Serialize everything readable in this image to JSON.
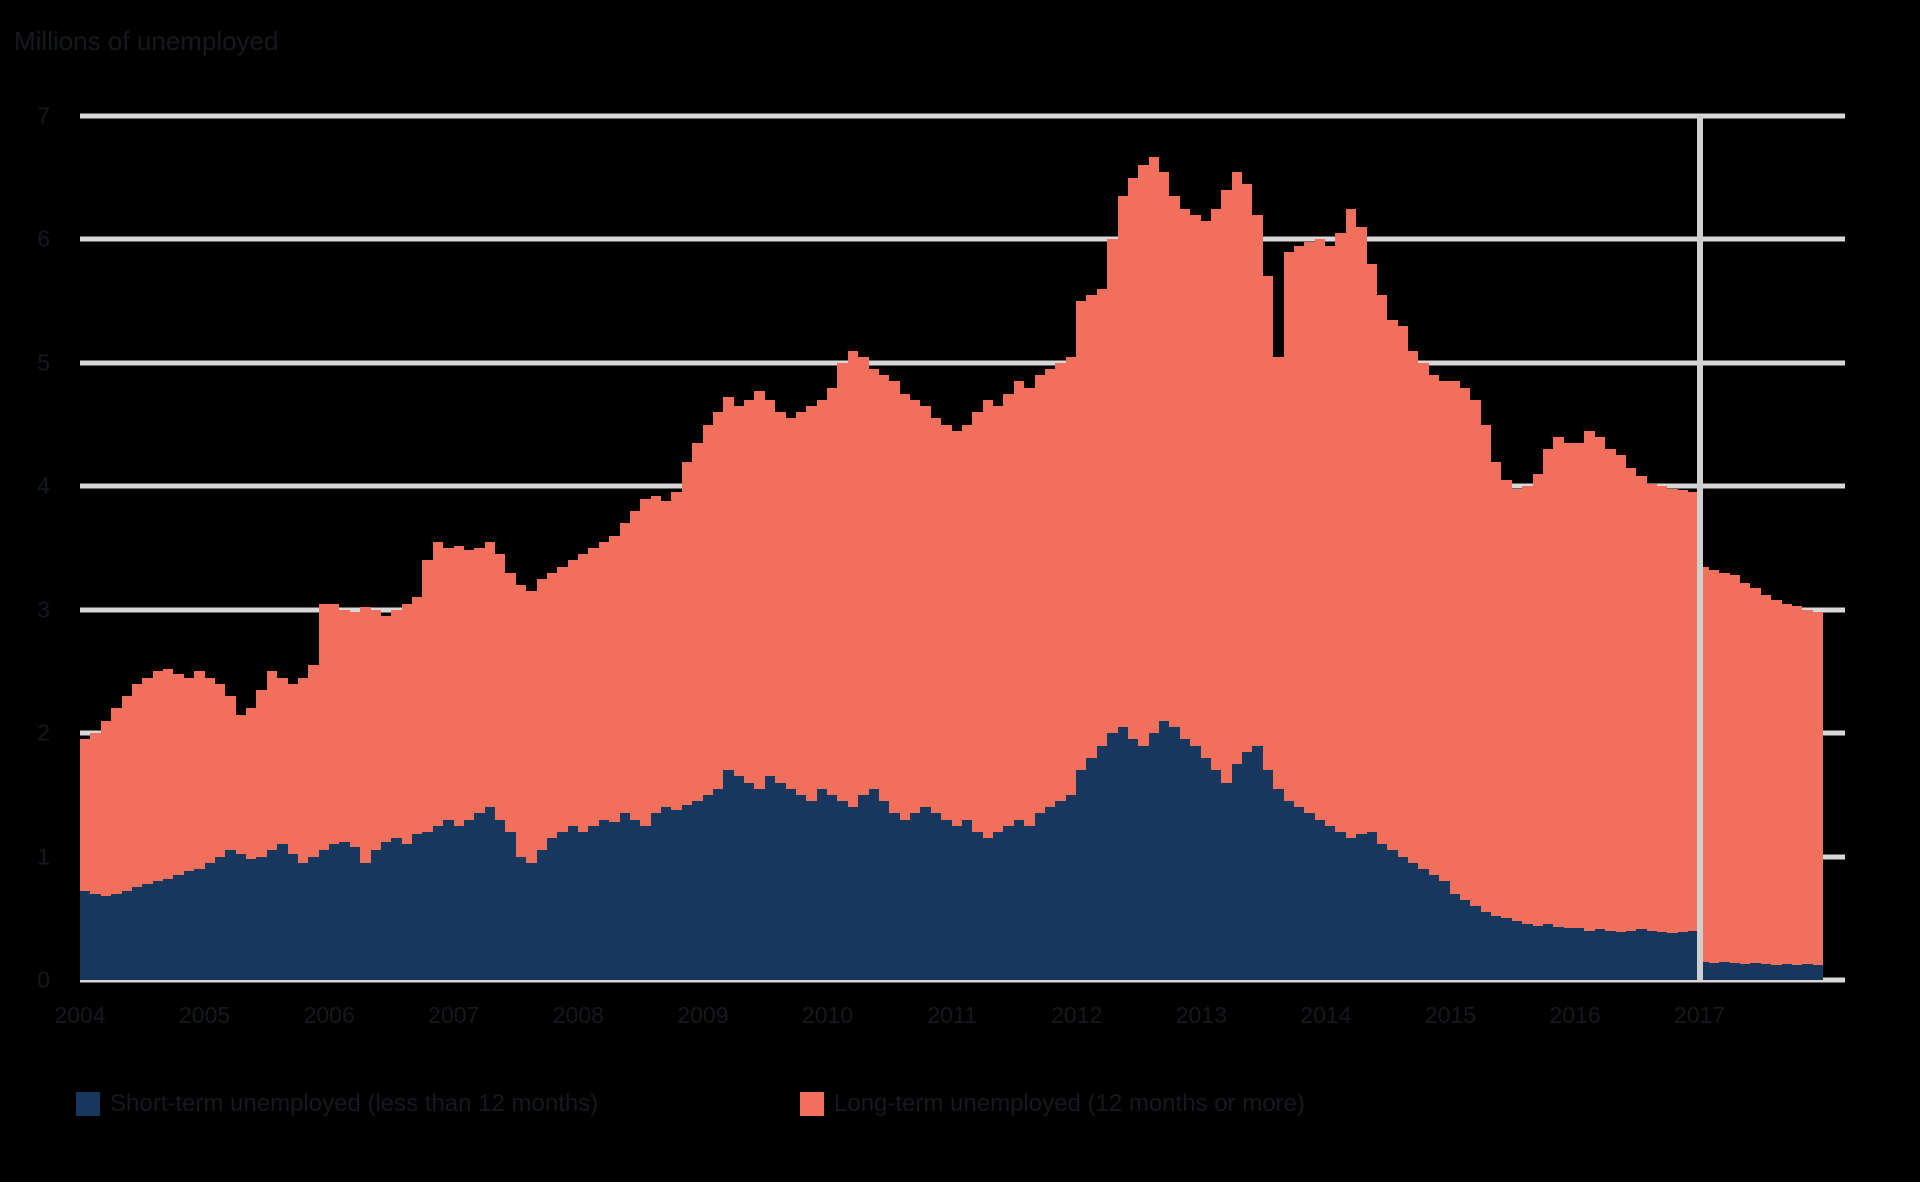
{
  "title": "Millions of unemployed",
  "colors": {
    "short_term": "#17375e",
    "long_term": "#f0705c",
    "gridline": "#d8d8d8",
    "divider": "#cfcfcf",
    "background": "#000000",
    "text": "#15181c"
  },
  "legend": [
    {
      "label": "Short-term unemployed (less than 12 months)",
      "color": "#17375e"
    },
    {
      "label": "Long-term unemployed (12 months or more)",
      "color": "#f0705c"
    }
  ],
  "chart_data": {
    "type": "bar",
    "stacked": true,
    "title": "Millions of unemployed",
    "xlabel": "",
    "ylabel": "",
    "ylim": [
      0,
      7
    ],
    "yticks": [
      0,
      1,
      2,
      3,
      4,
      5,
      6,
      7
    ],
    "grid": true,
    "legend_position": "bottom",
    "x_years": [
      "2004",
      "2005",
      "2006",
      "2007",
      "2008",
      "2009",
      "2010",
      "2011",
      "2012",
      "2013",
      "2014",
      "2015",
      "2016",
      "2017"
    ],
    "frequency": "monthly",
    "total_slots": 170,
    "divider_slot": 156,
    "series": [
      {
        "name": "Short-term unemployed (less than 12 months)",
        "color": "#17375e",
        "values": [
          0.72,
          0.7,
          0.68,
          0.7,
          0.72,
          0.75,
          0.78,
          0.8,
          0.82,
          0.85,
          0.88,
          0.9,
          0.95,
          1.0,
          1.05,
          1.02,
          0.98,
          1.0,
          1.05,
          1.1,
          1.02,
          0.95,
          1.0,
          1.05,
          1.1,
          1.12,
          1.08,
          0.95,
          1.05,
          1.12,
          1.15,
          1.1,
          1.18,
          1.2,
          1.25,
          1.3,
          1.25,
          1.3,
          1.35,
          1.4,
          1.3,
          1.2,
          1.0,
          0.95,
          1.05,
          1.15,
          1.2,
          1.25,
          1.2,
          1.25,
          1.3,
          1.28,
          1.35,
          1.3,
          1.25,
          1.35,
          1.4,
          1.38,
          1.42,
          1.45,
          1.5,
          1.55,
          1.7,
          1.65,
          1.6,
          1.55,
          1.65,
          1.6,
          1.55,
          1.5,
          1.45,
          1.55,
          1.5,
          1.45,
          1.4,
          1.5,
          1.55,
          1.45,
          1.35,
          1.3,
          1.35,
          1.4,
          1.35,
          1.3,
          1.25,
          1.3,
          1.2,
          1.15,
          1.2,
          1.25,
          1.3,
          1.25,
          1.35,
          1.4,
          1.45,
          1.5,
          1.7,
          1.8,
          1.9,
          2.0,
          2.05,
          1.95,
          1.9,
          2.0,
          2.1,
          2.05,
          1.95,
          1.9,
          1.8,
          1.7,
          1.6,
          1.75,
          1.85,
          1.9,
          1.7,
          1.55,
          1.45,
          1.4,
          1.35,
          1.3,
          1.25,
          1.2,
          1.15,
          1.18,
          1.2,
          1.1,
          1.05,
          1.0,
          0.95,
          0.9,
          0.85,
          0.8,
          0.7,
          0.65,
          0.6,
          0.55,
          0.52,
          0.5,
          0.48,
          0.45,
          0.44,
          0.45,
          0.43,
          0.42,
          0.42,
          0.4,
          0.41,
          0.4,
          0.39,
          0.4,
          0.41,
          0.4,
          0.39,
          0.38,
          0.39,
          0.4,
          0.15,
          0.14,
          0.15,
          0.14,
          0.13,
          0.14,
          0.13,
          0.12,
          0.13,
          0.12,
          0.13,
          0.12
        ]
      },
      {
        "name": "Long-term unemployed (12 months or more)",
        "color": "#f0705c",
        "values": [
          1.23,
          1.3,
          1.42,
          1.5,
          1.58,
          1.65,
          1.67,
          1.7,
          1.7,
          1.63,
          1.57,
          1.6,
          1.5,
          1.4,
          1.25,
          1.13,
          1.22,
          1.35,
          1.45,
          1.35,
          1.38,
          1.5,
          1.55,
          2.0,
          1.95,
          1.88,
          1.9,
          2.07,
          1.95,
          1.83,
          1.85,
          1.95,
          1.92,
          2.2,
          2.3,
          2.2,
          2.27,
          2.18,
          2.15,
          2.15,
          2.15,
          2.1,
          2.2,
          2.2,
          2.2,
          2.15,
          2.15,
          2.15,
          2.25,
          2.25,
          2.25,
          2.32,
          2.35,
          2.5,
          2.65,
          2.57,
          2.48,
          2.57,
          2.78,
          2.9,
          3.0,
          3.05,
          3.02,
          3.0,
          3.1,
          3.22,
          3.05,
          3.0,
          3.0,
          3.1,
          3.2,
          3.15,
          3.3,
          3.55,
          3.7,
          3.55,
          3.4,
          3.45,
          3.5,
          3.45,
          3.35,
          3.25,
          3.2,
          3.2,
          3.2,
          3.2,
          3.4,
          3.55,
          3.45,
          3.5,
          3.55,
          3.55,
          3.55,
          3.55,
          3.55,
          3.55,
          3.8,
          3.75,
          3.7,
          4.0,
          4.3,
          4.55,
          4.7,
          4.67,
          4.45,
          4.3,
          4.3,
          4.3,
          4.35,
          4.55,
          4.8,
          4.8,
          4.6,
          4.3,
          4.0,
          3.5,
          4.45,
          4.55,
          4.63,
          4.7,
          4.7,
          4.85,
          5.1,
          4.92,
          4.6,
          4.45,
          4.3,
          4.3,
          4.15,
          4.1,
          4.05,
          4.05,
          4.15,
          4.15,
          4.1,
          3.95,
          3.68,
          3.55,
          3.5,
          3.55,
          3.66,
          3.85,
          3.97,
          3.93,
          3.93,
          4.05,
          3.99,
          3.9,
          3.86,
          3.75,
          3.67,
          3.62,
          3.61,
          3.6,
          3.58,
          3.55,
          3.2,
          3.18,
          3.15,
          3.14,
          3.09,
          3.04,
          2.99,
          2.96,
          2.92,
          2.91,
          2.87,
          2.86
        ]
      }
    ]
  }
}
